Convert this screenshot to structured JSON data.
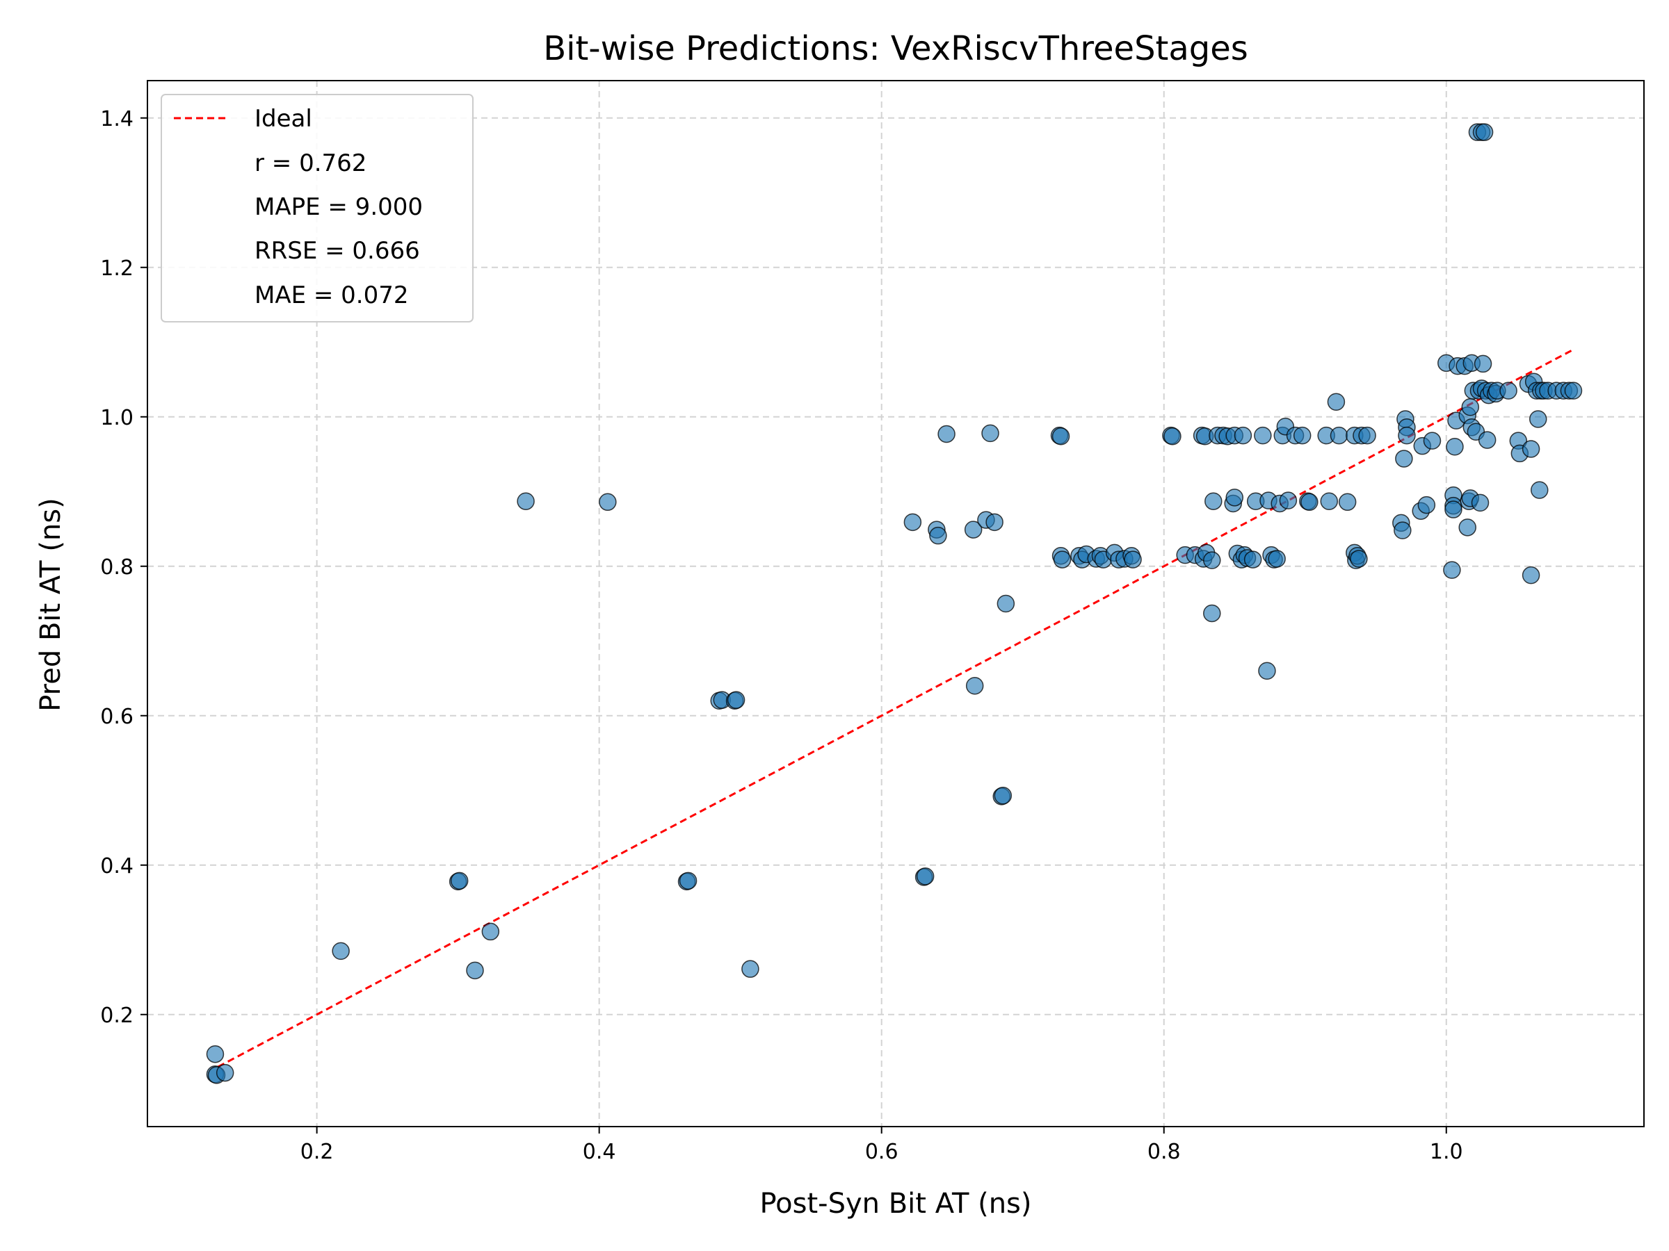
{
  "chart_data": {
    "type": "scatter",
    "title": "Bit-wise Predictions: VexRiscvThreeStages",
    "xlabel": "Post-Syn Bit AT (ns)",
    "ylabel": "Pred Bit AT (ns)",
    "xlim": [
      0.08,
      1.14
    ],
    "ylim": [
      0.05,
      1.45
    ],
    "xticks": [
      0.2,
      0.4,
      0.6,
      0.8,
      1.0
    ],
    "xtick_labels": [
      "0.2",
      "0.4",
      "0.6",
      "0.8",
      "1.0"
    ],
    "yticks": [
      0.2,
      0.4,
      0.6,
      0.8,
      1.0,
      1.2,
      1.4
    ],
    "ytick_labels": [
      "0.2",
      "0.4",
      "0.6",
      "0.8",
      "1.0",
      "1.2",
      "1.4"
    ],
    "grid": true,
    "legend_position": "top-left",
    "legend": {
      "line_label": "Ideal",
      "stats": [
        "r = 0.762",
        "MAPE = 9.000",
        "RRSE = 0.666",
        "MAE = 0.072"
      ]
    },
    "colors": {
      "points": "#1f77b4",
      "ideal_line": "#ff0000",
      "grid": "#d3d3d3"
    },
    "ideal_line": {
      "x": [
        0.13,
        1.09
      ],
      "y": [
        0.13,
        1.09
      ]
    },
    "points": [
      [
        0.128,
        0.147
      ],
      [
        0.128,
        0.12
      ],
      [
        0.129,
        0.119
      ],
      [
        0.135,
        0.122
      ],
      [
        0.217,
        0.285
      ],
      [
        0.3,
        0.378
      ],
      [
        0.301,
        0.379
      ],
      [
        0.312,
        0.259
      ],
      [
        0.323,
        0.311
      ],
      [
        0.348,
        0.887
      ],
      [
        0.406,
        0.886
      ],
      [
        0.462,
        0.378
      ],
      [
        0.463,
        0.379
      ],
      [
        0.485,
        0.62
      ],
      [
        0.487,
        0.621
      ],
      [
        0.496,
        0.62
      ],
      [
        0.497,
        0.621
      ],
      [
        0.507,
        0.261
      ],
      [
        0.622,
        0.859
      ],
      [
        0.63,
        0.384
      ],
      [
        0.631,
        0.385
      ],
      [
        0.639,
        0.849
      ],
      [
        0.64,
        0.841
      ],
      [
        0.646,
        0.977
      ],
      [
        0.665,
        0.849
      ],
      [
        0.666,
        0.64
      ],
      [
        0.674,
        0.862
      ],
      [
        0.677,
        0.978
      ],
      [
        0.68,
        0.859
      ],
      [
        0.685,
        0.492
      ],
      [
        0.686,
        0.493
      ],
      [
        0.688,
        0.75
      ],
      [
        0.726,
        0.975
      ],
      [
        0.727,
        0.974
      ],
      [
        0.727,
        0.814
      ],
      [
        0.728,
        0.809
      ],
      [
        0.74,
        0.814
      ],
      [
        0.742,
        0.809
      ],
      [
        0.745,
        0.816
      ],
      [
        0.752,
        0.81
      ],
      [
        0.755,
        0.814
      ],
      [
        0.757,
        0.809
      ],
      [
        0.765,
        0.818
      ],
      [
        0.768,
        0.809
      ],
      [
        0.772,
        0.81
      ],
      [
        0.777,
        0.814
      ],
      [
        0.778,
        0.809
      ],
      [
        0.805,
        0.975
      ],
      [
        0.806,
        0.974
      ],
      [
        0.827,
        0.975
      ],
      [
        0.829,
        0.974
      ],
      [
        0.838,
        0.975
      ],
      [
        0.842,
        0.975
      ],
      [
        0.845,
        0.974
      ],
      [
        0.85,
        0.975
      ],
      [
        0.856,
        0.975
      ],
      [
        0.815,
        0.815
      ],
      [
        0.822,
        0.815
      ],
      [
        0.828,
        0.81
      ],
      [
        0.83,
        0.818
      ],
      [
        0.834,
        0.808
      ],
      [
        0.834,
        0.737
      ],
      [
        0.835,
        0.887
      ],
      [
        0.849,
        0.884
      ],
      [
        0.85,
        0.892
      ],
      [
        0.852,
        0.817
      ],
      [
        0.855,
        0.809
      ],
      [
        0.857,
        0.815
      ],
      [
        0.859,
        0.811
      ],
      [
        0.863,
        0.809
      ],
      [
        0.865,
        0.887
      ],
      [
        0.87,
        0.975
      ],
      [
        0.873,
        0.66
      ],
      [
        0.874,
        0.888
      ],
      [
        0.876,
        0.815
      ],
      [
        0.878,
        0.809
      ],
      [
        0.88,
        0.81
      ],
      [
        0.882,
        0.884
      ],
      [
        0.884,
        0.975
      ],
      [
        0.886,
        0.987
      ],
      [
        0.888,
        0.888
      ],
      [
        0.893,
        0.975
      ],
      [
        0.898,
        0.975
      ],
      [
        0.902,
        0.887
      ],
      [
        0.903,
        0.886
      ],
      [
        0.915,
        0.975
      ],
      [
        0.917,
        0.887
      ],
      [
        0.922,
        1.02
      ],
      [
        0.924,
        0.975
      ],
      [
        0.93,
        0.886
      ],
      [
        0.935,
        0.975
      ],
      [
        0.935,
        0.818
      ],
      [
        0.936,
        0.808
      ],
      [
        0.937,
        0.814
      ],
      [
        0.938,
        0.81
      ],
      [
        0.94,
        0.975
      ],
      [
        0.944,
        0.975
      ],
      [
        0.968,
        0.858
      ],
      [
        0.969,
        0.848
      ],
      [
        0.97,
        0.944
      ],
      [
        0.971,
        0.997
      ],
      [
        0.972,
        0.986
      ],
      [
        0.972,
        0.975
      ],
      [
        0.982,
        0.874
      ],
      [
        0.983,
        0.961
      ],
      [
        0.986,
        0.882
      ],
      [
        0.99,
        0.968
      ],
      [
        1.0,
        1.072
      ],
      [
        1.004,
        0.795
      ],
      [
        1.005,
        0.895
      ],
      [
        1.005,
        0.881
      ],
      [
        1.005,
        0.876
      ],
      [
        1.006,
        0.96
      ],
      [
        1.007,
        0.995
      ],
      [
        1.008,
        1.068
      ],
      [
        1.013,
        1.068
      ],
      [
        1.015,
        1.002
      ],
      [
        1.015,
        0.852
      ],
      [
        1.016,
        0.887
      ],
      [
        1.017,
        0.891
      ],
      [
        1.017,
        1.013
      ],
      [
        1.018,
        0.986
      ],
      [
        1.018,
        1.072
      ],
      [
        1.019,
        1.035
      ],
      [
        1.021,
        0.98
      ],
      [
        1.022,
        1.381
      ],
      [
        1.023,
        1.035
      ],
      [
        1.024,
        0.885
      ],
      [
        1.025,
        1.038
      ],
      [
        1.025,
        1.381
      ],
      [
        1.026,
        1.071
      ],
      [
        1.027,
        1.381
      ],
      [
        1.028,
        1.035
      ],
      [
        1.029,
        0.969
      ],
      [
        1.03,
        1.029
      ],
      [
        1.032,
        1.035
      ],
      [
        1.035,
        1.031
      ],
      [
        1.036,
        1.035
      ],
      [
        1.044,
        1.035
      ],
      [
        1.051,
        0.968
      ],
      [
        1.052,
        0.951
      ],
      [
        1.058,
        1.044
      ],
      [
        1.06,
        0.788
      ],
      [
        1.06,
        0.957
      ],
      [
        1.062,
        1.047
      ],
      [
        1.064,
        1.035
      ],
      [
        1.065,
        0.997
      ],
      [
        1.066,
        0.902
      ],
      [
        1.067,
        1.035
      ],
      [
        1.069,
        1.035
      ],
      [
        1.072,
        1.035
      ],
      [
        1.078,
        1.035
      ],
      [
        1.083,
        1.035
      ],
      [
        1.087,
        1.035
      ],
      [
        1.09,
        1.035
      ]
    ]
  }
}
